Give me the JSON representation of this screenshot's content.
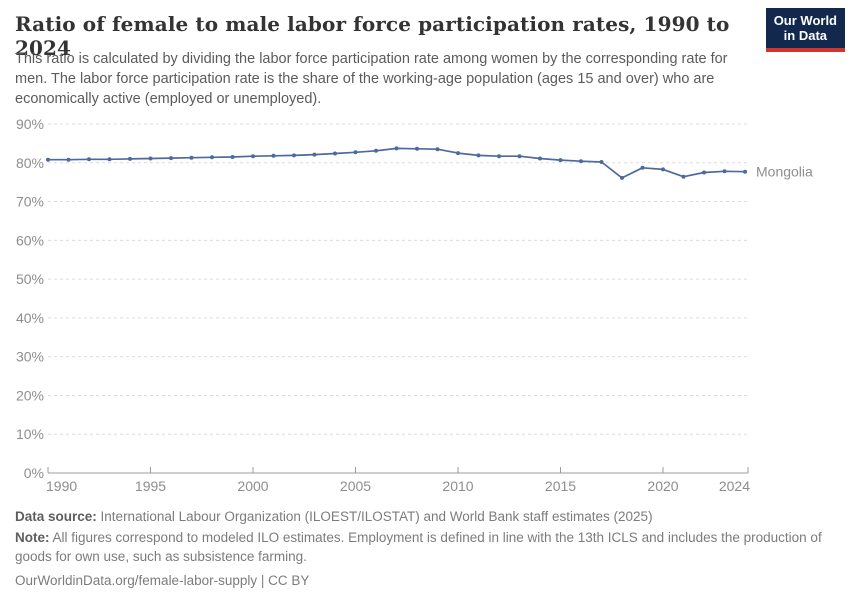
{
  "header": {
    "title": "Ratio of female to male labor force participation rates, 1990 to 2024",
    "subtitle": "This ratio is calculated by dividing the labor force participation rate among women by the corresponding rate for men. The labor force participation rate is the share of the working-age population (ages 15 and over) who are economically active (employed or unemployed)."
  },
  "logo": {
    "line1": "Our World",
    "line2": "in Data",
    "bg_color": "#12294d",
    "accent_color": "#d0342c"
  },
  "chart_data": {
    "type": "line",
    "title": "Ratio of female to male labor force participation rates, 1990 to 2024",
    "x": [
      1990,
      1991,
      1992,
      1993,
      1994,
      1995,
      1996,
      1997,
      1998,
      1999,
      2000,
      2001,
      2002,
      2003,
      2004,
      2005,
      2006,
      2007,
      2008,
      2009,
      2010,
      2011,
      2012,
      2013,
      2014,
      2015,
      2016,
      2017,
      2018,
      2019,
      2020,
      2021,
      2022,
      2023,
      2024
    ],
    "series": [
      {
        "name": "Mongolia",
        "color": "#4c6a9c",
        "values": [
          80.8,
          80.8,
          80.9,
          80.9,
          81.0,
          81.1,
          81.2,
          81.3,
          81.4,
          81.5,
          81.7,
          81.8,
          81.9,
          82.1,
          82.4,
          82.7,
          83.1,
          83.7,
          83.6,
          83.5,
          82.5,
          81.9,
          81.7,
          81.7,
          81.1,
          80.7,
          80.4,
          80.2,
          76.1,
          78.7,
          78.3,
          76.4,
          77.5,
          77.8,
          77.7
        ]
      }
    ],
    "xlabel": "",
    "ylabel": "",
    "ylim": [
      0,
      90
    ],
    "yticks": [
      0,
      10,
      20,
      30,
      40,
      50,
      60,
      70,
      80,
      90
    ],
    "ytick_suffix": "%",
    "xticks": [
      1990,
      1995,
      2000,
      2005,
      2010,
      2015,
      2020,
      2024
    ],
    "grid": true,
    "grid_color": "#dcdcdc",
    "axis_color": "#9c9c9c",
    "tick_label_color": "#8e8e8e",
    "legend_position": "end-of-line"
  },
  "footer": {
    "data_source_label": "Data source:",
    "data_source_text": "International Labour Organization (ILOEST/ILOSTAT) and World Bank staff estimates (2025)",
    "note_label": "Note:",
    "note_text": "All figures correspond to modeled ILO estimates. Employment is defined in line with the 13th ICLS and includes the production of goods for own use, such as subsistence farming.",
    "citation": "OurWorldinData.org/female-labor-supply | CC BY"
  }
}
